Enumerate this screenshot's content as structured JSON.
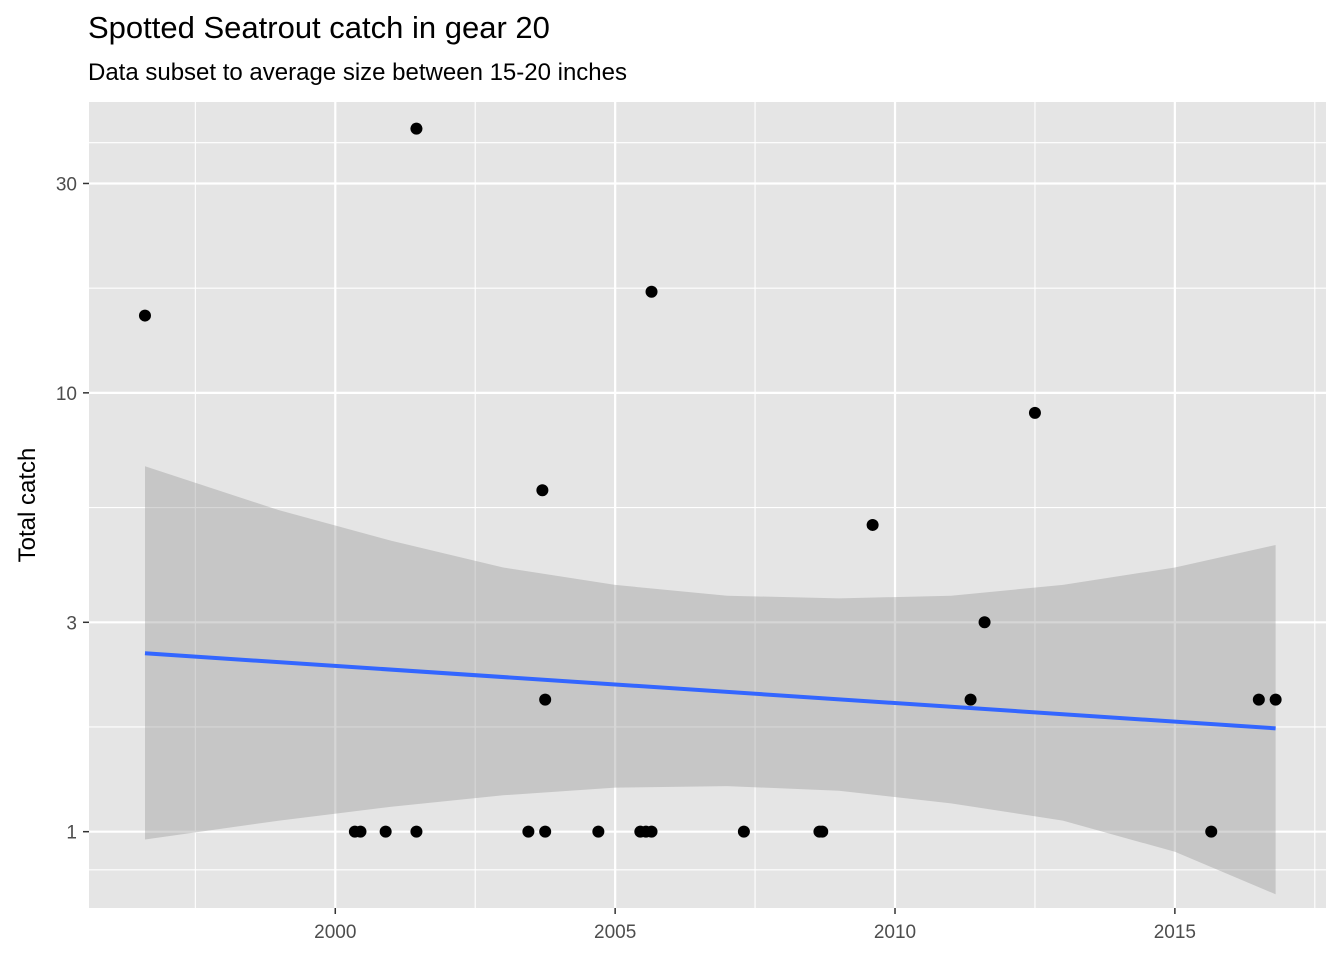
{
  "chart_data": {
    "type": "scatter",
    "title": "Spotted Seatrout catch in gear 20",
    "subtitle": "Data subset to average size between 15-20 inches",
    "xlabel": "",
    "ylabel": "Total catch",
    "y_scale": "log10",
    "xlim": [
      1995.6,
      2017.7
    ],
    "ylim": [
      0.67,
      46
    ],
    "x_ticks": [
      2000,
      2005,
      2010,
      2015
    ],
    "x_tick_labels": [
      "2000",
      "2005",
      "2010",
      "2015"
    ],
    "y_ticks": [
      1,
      3,
      10,
      30
    ],
    "y_tick_labels": [
      "1",
      "3",
      "10",
      "30"
    ],
    "grid": true,
    "points": [
      {
        "x": 1996.6,
        "y": 15
      },
      {
        "x": 2000.35,
        "y": 1
      },
      {
        "x": 2000.45,
        "y": 1
      },
      {
        "x": 2000.9,
        "y": 1
      },
      {
        "x": 2001.45,
        "y": 40
      },
      {
        "x": 2001.45,
        "y": 1
      },
      {
        "x": 2003.45,
        "y": 1
      },
      {
        "x": 2003.7,
        "y": 6
      },
      {
        "x": 2003.75,
        "y": 1
      },
      {
        "x": 2003.75,
        "y": 2
      },
      {
        "x": 2004.7,
        "y": 1
      },
      {
        "x": 2005.45,
        "y": 1
      },
      {
        "x": 2005.55,
        "y": 1
      },
      {
        "x": 2005.65,
        "y": 17
      },
      {
        "x": 2005.65,
        "y": 1
      },
      {
        "x": 2007.3,
        "y": 1
      },
      {
        "x": 2008.65,
        "y": 1
      },
      {
        "x": 2008.7,
        "y": 1
      },
      {
        "x": 2009.6,
        "y": 5
      },
      {
        "x": 2011.35,
        "y": 2
      },
      {
        "x": 2011.6,
        "y": 3
      },
      {
        "x": 2012.5,
        "y": 9
      },
      {
        "x": 2015.65,
        "y": 1
      },
      {
        "x": 2016.5,
        "y": 2
      },
      {
        "x": 2016.8,
        "y": 2
      }
    ],
    "trend_line": {
      "color": "#3366ff",
      "x": [
        1996.6,
        2016.8
      ],
      "y": [
        2.55,
        1.72
      ]
    },
    "confidence_band": {
      "color": "#999999",
      "x": [
        1996.6,
        1999,
        2001,
        2003,
        2005,
        2007,
        2009,
        2011,
        2013,
        2015,
        2016.8
      ],
      "upper": [
        6.8,
        5.4,
        4.6,
        4.0,
        3.65,
        3.45,
        3.4,
        3.45,
        3.65,
        4.0,
        4.5
      ],
      "lower": [
        0.96,
        1.06,
        1.14,
        1.21,
        1.26,
        1.27,
        1.24,
        1.16,
        1.06,
        0.9,
        0.72
      ]
    },
    "colors": {
      "panel_background": "#e5e5e5",
      "grid_major": "#ffffff",
      "point": "#000000"
    }
  }
}
